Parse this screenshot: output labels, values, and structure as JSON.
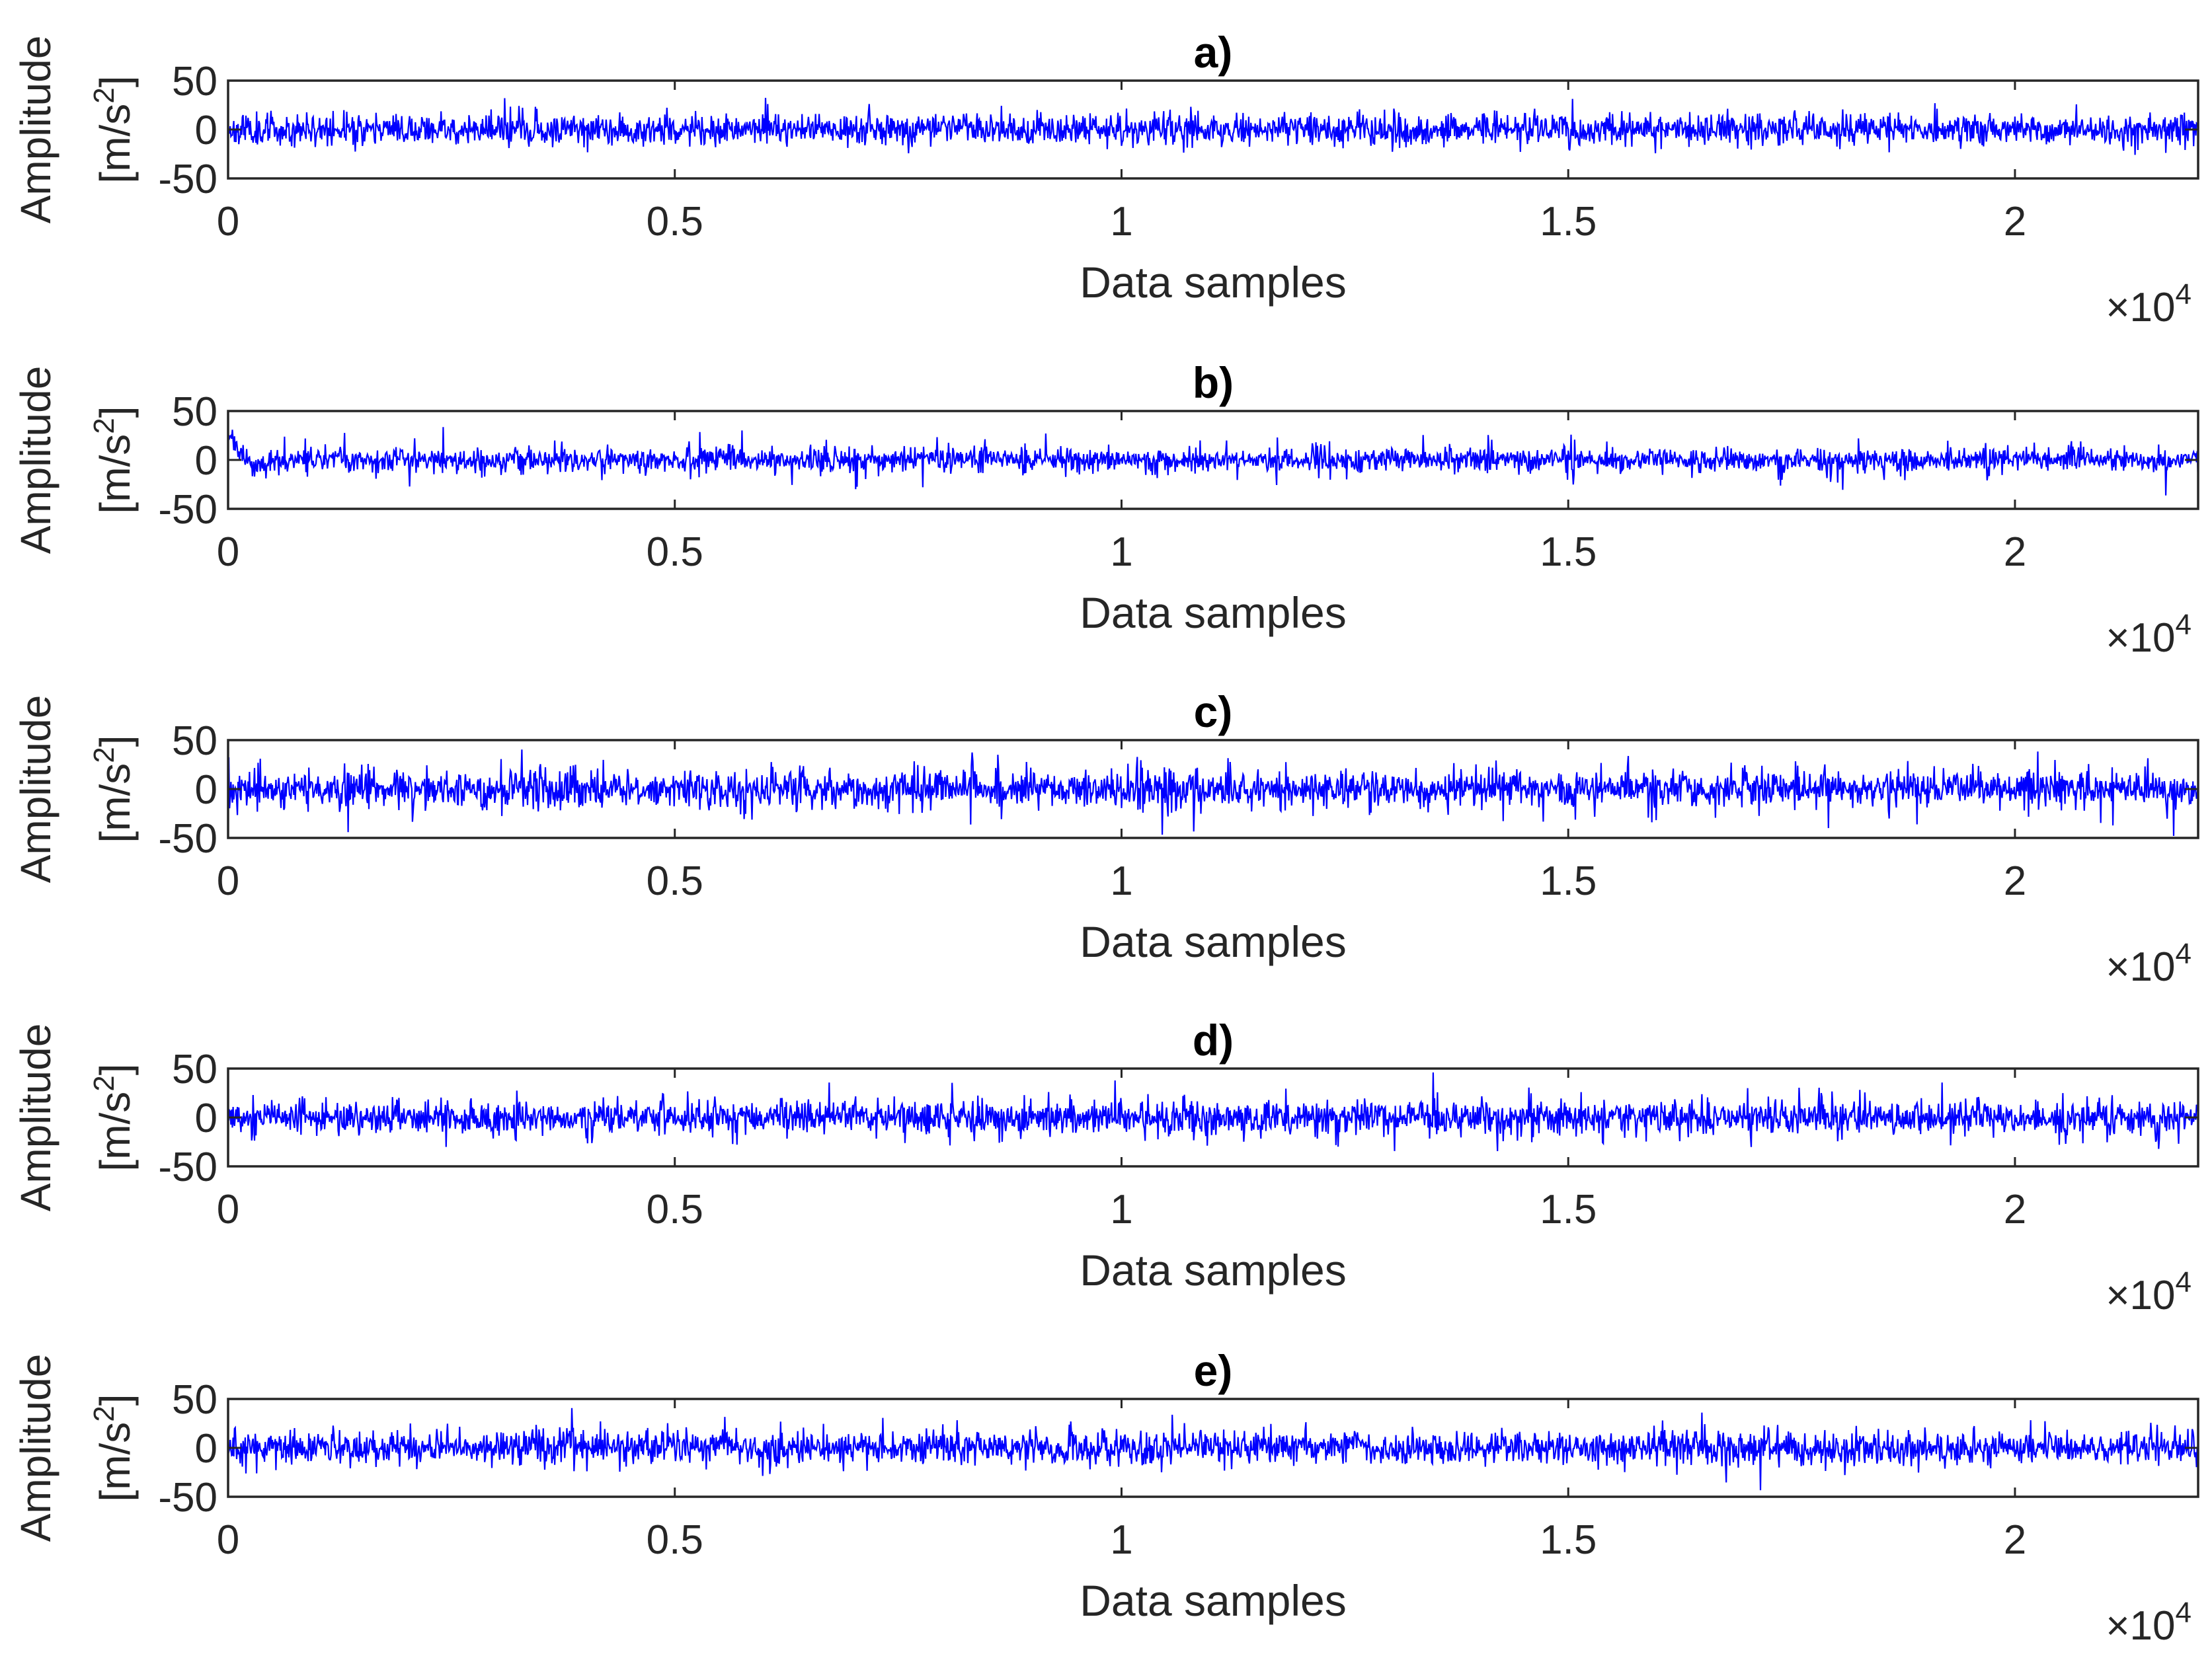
{
  "chart_data": [
    {
      "type": "line",
      "title": "a)",
      "xlabel": "Data samples",
      "ylabel_line1": "Amplitude",
      "ylabel_line2": "[m/s",
      "ylabel_sup": "2",
      "ylabel_close": "]",
      "x_multiplier_base": "×10",
      "x_multiplier_exp": "4",
      "xlim": [
        0,
        22050
      ],
      "ylim": [
        -50,
        50
      ],
      "xticks": [
        0,
        5000,
        10000,
        15000,
        20000
      ],
      "xtick_labels": [
        "0",
        "0.5",
        "1",
        "1.5",
        "2"
      ],
      "yticks": [
        -50,
        0,
        50
      ],
      "ytick_labels": [
        "-50",
        "0",
        "50"
      ],
      "series": [
        {
          "color": "#0000ff",
          "n_samples": 22050,
          "seed": 11,
          "amp": 8,
          "spike": 18,
          "period": 0,
          "transient": 0
        }
      ]
    },
    {
      "type": "line",
      "title": "b)",
      "xlabel": "Data samples",
      "ylabel_line1": "Amplitude",
      "ylabel_line2": "[m/s",
      "ylabel_sup": "2",
      "ylabel_close": "]",
      "x_multiplier_base": "×10",
      "x_multiplier_exp": "4",
      "xlim": [
        0,
        22050
      ],
      "ylim": [
        -50,
        50
      ],
      "xticks": [
        0,
        5000,
        10000,
        15000,
        20000
      ],
      "xtick_labels": [
        "0",
        "0.5",
        "1",
        "1.5",
        "2"
      ],
      "yticks": [
        -50,
        0,
        50
      ],
      "ytick_labels": [
        "-50",
        "0",
        "50"
      ],
      "series": [
        {
          "color": "#0000ff",
          "n_samples": 22050,
          "seed": 23,
          "amp": 7,
          "spike": 26,
          "period": 470,
          "transient": 1
        }
      ]
    },
    {
      "type": "line",
      "title": "c)",
      "xlabel": "Data samples",
      "ylabel_line1": "Amplitude",
      "ylabel_line2": "[m/s",
      "ylabel_sup": "2",
      "ylabel_close": "]",
      "x_multiplier_base": "×10",
      "x_multiplier_exp": "4",
      "xlim": [
        0,
        22050
      ],
      "ylim": [
        -50,
        50
      ],
      "xticks": [
        0,
        5000,
        10000,
        15000,
        20000
      ],
      "xtick_labels": [
        "0",
        "0.5",
        "1",
        "1.5",
        "2"
      ],
      "yticks": [
        -50,
        0,
        50
      ],
      "ytick_labels": [
        "-50",
        "0",
        "50"
      ],
      "series": [
        {
          "color": "#0000ff",
          "n_samples": 22050,
          "seed": 37,
          "amp": 11,
          "spike": 34,
          "period": 320,
          "transient": 0
        }
      ]
    },
    {
      "type": "line",
      "title": "d)",
      "xlabel": "Data samples",
      "ylabel_line1": "Amplitude",
      "ylabel_line2": "[m/s",
      "ylabel_sup": "2",
      "ylabel_close": "]",
      "x_multiplier_base": "×10",
      "x_multiplier_exp": "4",
      "xlim": [
        0,
        22050
      ],
      "ylim": [
        -50,
        50
      ],
      "xticks": [
        0,
        5000,
        10000,
        15000,
        20000
      ],
      "xtick_labels": [
        "0",
        "0.5",
        "1",
        "1.5",
        "2"
      ],
      "yticks": [
        -50,
        0,
        50
      ],
      "ytick_labels": [
        "-50",
        "0",
        "50"
      ],
      "series": [
        {
          "color": "#0000ff",
          "n_samples": 22050,
          "seed": 53,
          "amp": 10,
          "spike": 30,
          "period": 270,
          "transient": 0
        }
      ]
    },
    {
      "type": "line",
      "title": "e)",
      "xlabel": "Data samples",
      "ylabel_line1": "Amplitude",
      "ylabel_line2": "[m/s",
      "ylabel_sup": "2",
      "ylabel_close": "]",
      "x_multiplier_base": "×10",
      "x_multiplier_exp": "4",
      "xlim": [
        0,
        22050
      ],
      "ylim": [
        -50,
        50
      ],
      "xticks": [
        0,
        5000,
        10000,
        15000,
        20000
      ],
      "xtick_labels": [
        "0",
        "0.5",
        "1",
        "1.5",
        "2"
      ],
      "yticks": [
        -50,
        0,
        50
      ],
      "ytick_labels": [
        "-50",
        "0",
        "50"
      ],
      "series": [
        {
          "color": "#0000ff",
          "n_samples": 22050,
          "seed": 71,
          "amp": 9,
          "spike": 28,
          "period": 0,
          "transient": 0
        }
      ]
    }
  ]
}
